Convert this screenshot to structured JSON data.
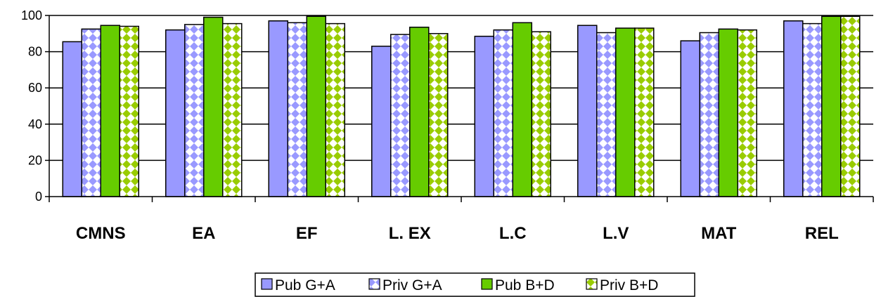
{
  "chart_data": {
    "type": "bar",
    "title": "",
    "xlabel": "",
    "ylabel": "",
    "ylim": [
      0,
      100
    ],
    "yticks": [
      0,
      20,
      40,
      60,
      80,
      100
    ],
    "grid": "horizontal",
    "legend_position": "bottom",
    "categories": [
      "CMNS",
      "EA",
      "EF",
      "L. EX",
      "L.C",
      "L.V",
      "MAT",
      "REL"
    ],
    "series": [
      {
        "name": "Pub G+A",
        "color": "#9999ff",
        "pattern": "solid",
        "values": [
          85.5,
          92,
          97,
          83,
          88.5,
          94.5,
          86,
          97
        ]
      },
      {
        "name": "Priv G+A",
        "color": "#9999ff",
        "pattern": "diamond-checker",
        "values": [
          92.5,
          95,
          96,
          89.5,
          92,
          90.5,
          90.5,
          95.5
        ]
      },
      {
        "name": "Pub B+D",
        "color": "#66cc00",
        "pattern": "solid",
        "values": [
          94.5,
          99,
          99.5,
          93.5,
          96,
          93,
          92.5,
          99.5
        ]
      },
      {
        "name": "Priv B+D",
        "color": "#99cc00",
        "pattern": "diamond-checker",
        "values": [
          94,
          95.5,
          95.5,
          90,
          91,
          93,
          92,
          99.5
        ]
      }
    ]
  }
}
